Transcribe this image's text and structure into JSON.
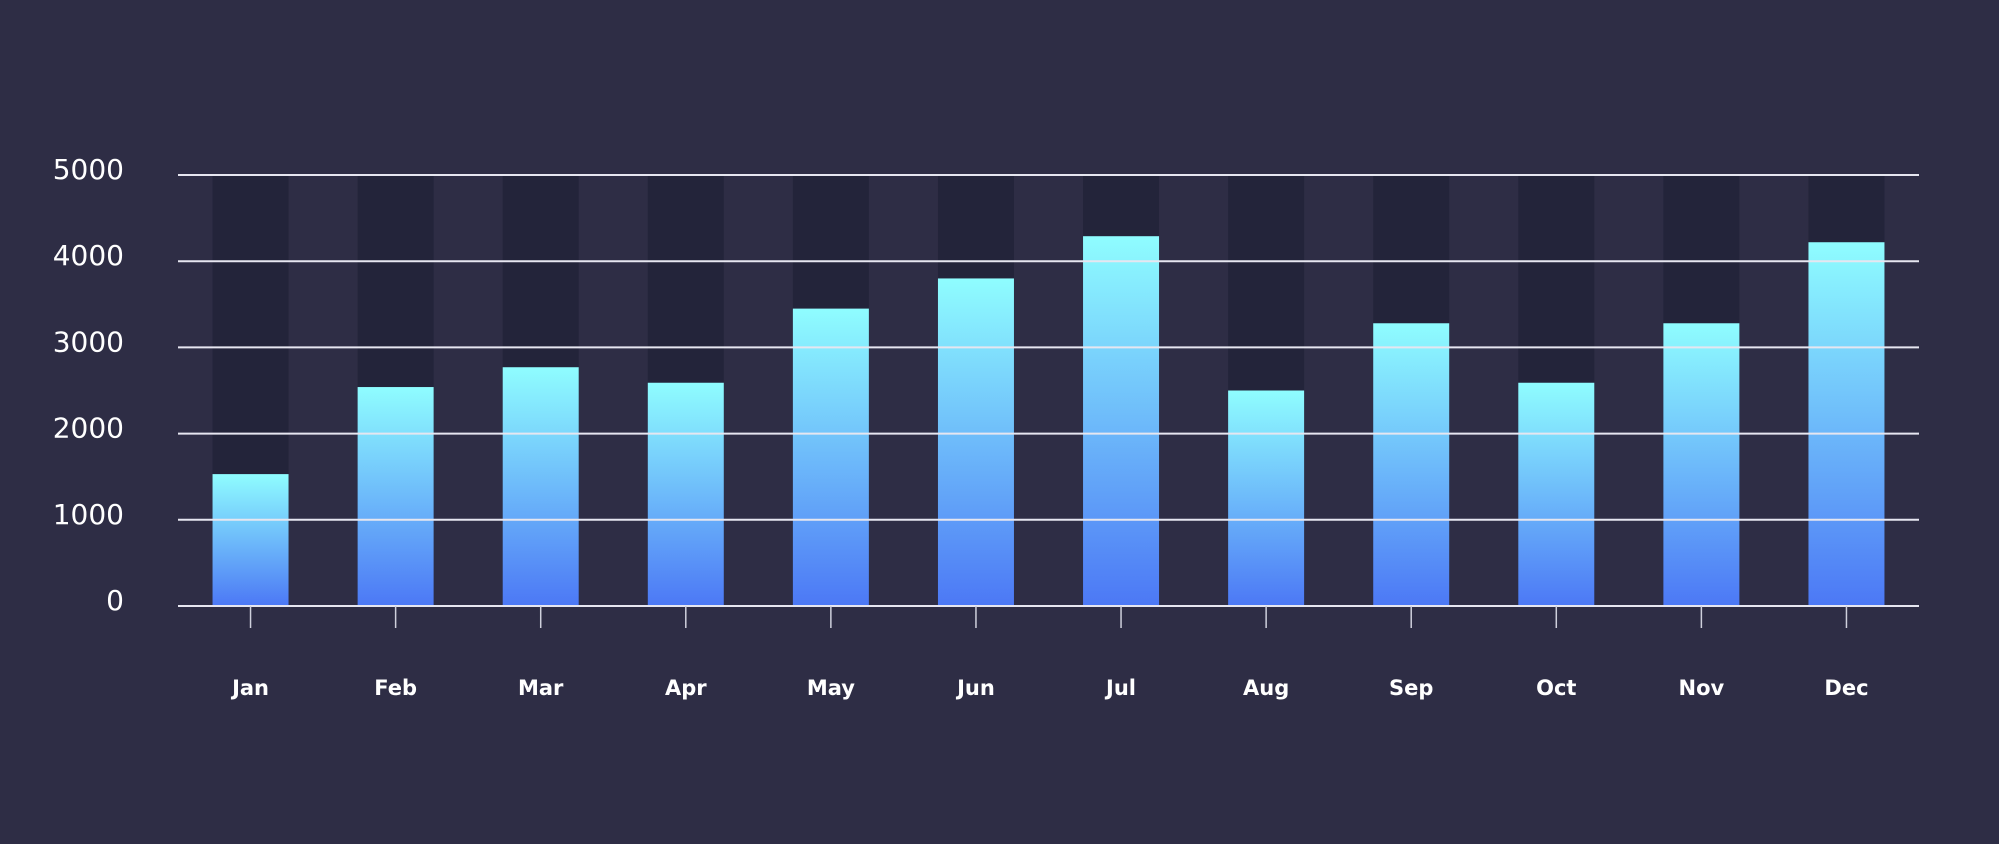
{
  "chart_data": {
    "type": "bar",
    "categories": [
      "Jan",
      "Feb",
      "Mar",
      "Apr",
      "May",
      "Jun",
      "Jul",
      "Aug",
      "Sep",
      "Oct",
      "Nov",
      "Dec"
    ],
    "values": [
      1530,
      2540,
      2770,
      2590,
      3450,
      3800,
      4290,
      2500,
      3280,
      2590,
      3280,
      4220
    ],
    "gradient": [
      "#8ffdff",
      "#4c78f5"
    ],
    "background_bar_color": "#23243a",
    "ylim": [
      0,
      5000
    ],
    "yticks": [
      0,
      1000,
      2000,
      3000,
      4000,
      5000
    ],
    "grid": true
  }
}
